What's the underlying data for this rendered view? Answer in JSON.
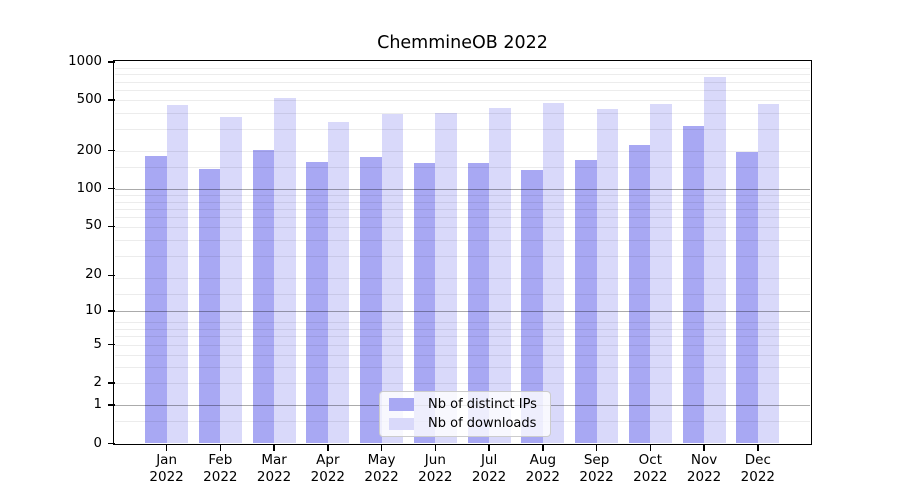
{
  "chart_data": {
    "type": "bar",
    "title": "ChemmineOB 2022",
    "categories": [
      "Jan",
      "Feb",
      "Mar",
      "Apr",
      "May",
      "Jun",
      "Jul",
      "Aug",
      "Sep",
      "Oct",
      "Nov",
      "Dec"
    ],
    "year": "2022",
    "series": [
      {
        "name": "Nb of distinct IPs",
        "color": "#a8a8f3",
        "values": [
          181,
          142,
          201,
          164,
          178,
          160,
          159,
          140,
          170,
          222,
          314,
          194
        ]
      },
      {
        "name": "Nb of downloads",
        "color": "#d9d9fa",
        "values": [
          461,
          371,
          521,
          336,
          391,
          400,
          431,
          478,
          426,
          465,
          757,
          466
        ]
      }
    ],
    "y_ticks": [
      0,
      1,
      2,
      5,
      10,
      20,
      50,
      100,
      200,
      500,
      1000
    ],
    "ylim": [
      0,
      1000
    ],
    "y_scale": "log1p",
    "grid": "horizontal log minor gridlines, darker lines at 1, 10, 100",
    "legend_position": "bottom-center-inside",
    "colors": {
      "background": "#ffffff",
      "axis_frame": "#000000",
      "grid_minor": "#ebebeb",
      "grid_major": "#aaaaaa",
      "legend_border": "#cccccc"
    }
  }
}
